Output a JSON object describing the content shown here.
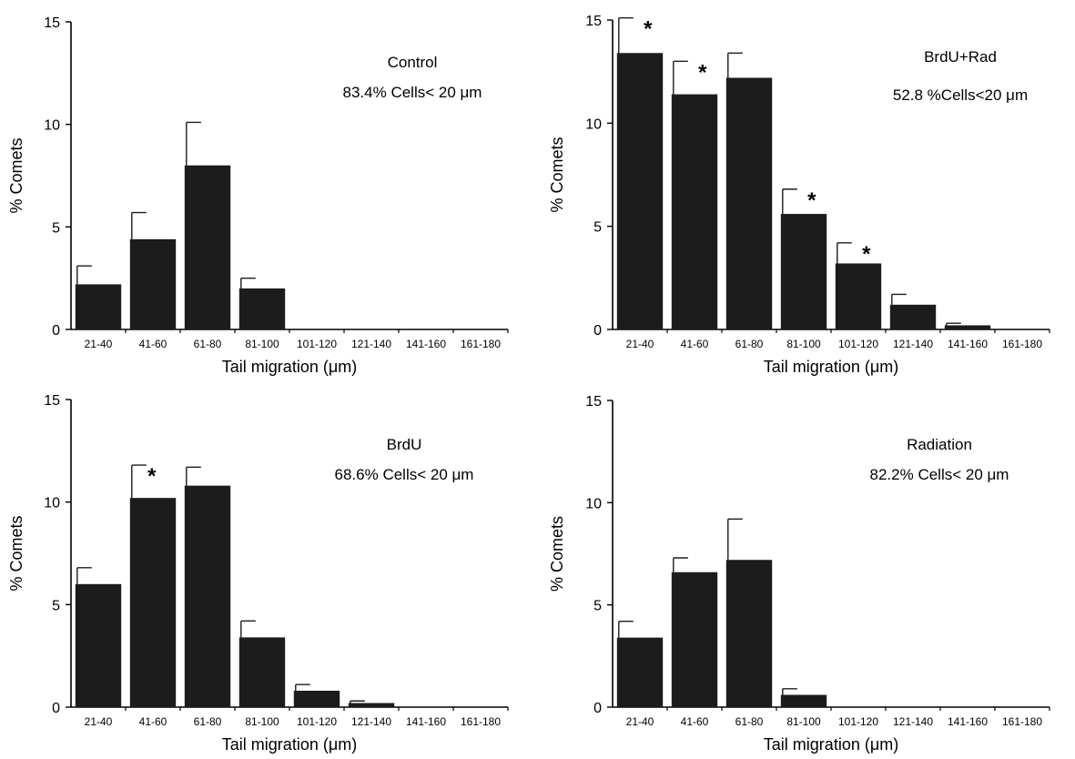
{
  "chart_data": [
    {
      "type": "bar",
      "categories": [
        "21-40",
        "41-60",
        "61-80",
        "81-100",
        "101-120",
        "121-140",
        "141-160",
        "161-180"
      ],
      "values": [
        2.2,
        4.4,
        8.0,
        2.0,
        0,
        0,
        0,
        0
      ],
      "errors": [
        0.9,
        1.3,
        2.1,
        0.5,
        0,
        0,
        0,
        0
      ],
      "significant": [
        false,
        false,
        false,
        false,
        false,
        false,
        false,
        false
      ],
      "xlabel": "Tail migration (μm)",
      "ylabel": "% Comets",
      "ylim": [
        0,
        15
      ],
      "yticks": [
        "0",
        "5",
        "10",
        "15"
      ],
      "annotations": [
        "Control",
        "83.4% Cells< 20 μm"
      ],
      "significance_marker": "*",
      "grid": false
    },
    {
      "type": "bar",
      "categories": [
        "21-40",
        "41-60",
        "61-80",
        "81-100",
        "101-120",
        "121-140",
        "141-160",
        "161-180"
      ],
      "values": [
        13.4,
        11.4,
        12.2,
        5.6,
        3.2,
        1.2,
        0.2,
        0
      ],
      "errors": [
        1.7,
        1.6,
        1.2,
        1.2,
        1.0,
        0.5,
        0.1,
        0
      ],
      "significant": [
        true,
        true,
        false,
        true,
        true,
        false,
        false,
        false
      ],
      "xlabel": "Tail migration (μm)",
      "ylabel": "% Comets",
      "ylim": [
        0,
        15
      ],
      "yticks": [
        "0",
        "5",
        "10",
        "15"
      ],
      "annotations": [
        "BrdU+Rad",
        "52.8 %Cells<20 μm"
      ],
      "significance_marker": "*",
      "grid": false
    },
    {
      "type": "bar",
      "categories": [
        "21-40",
        "41-60",
        "61-80",
        "81-100",
        "101-120",
        "121-140",
        "141-160",
        "161-180"
      ],
      "values": [
        6.0,
        10.2,
        10.8,
        3.4,
        0.8,
        0.2,
        0,
        0
      ],
      "errors": [
        0.8,
        1.6,
        0.9,
        0.8,
        0.3,
        0.1,
        0,
        0
      ],
      "significant": [
        false,
        true,
        false,
        false,
        false,
        false,
        false,
        false
      ],
      "xlabel": "Tail migration (μm)",
      "ylabel": "% Comets",
      "ylim": [
        0,
        15
      ],
      "yticks": [
        "0",
        "5",
        "10",
        "15"
      ],
      "annotations": [
        "BrdU",
        "68.6% Cells< 20 μm"
      ],
      "significance_marker": "*",
      "grid": false
    },
    {
      "type": "bar",
      "categories": [
        "21-40",
        "41-60",
        "61-80",
        "81-100",
        "101-120",
        "121-140",
        "141-160",
        "161-180"
      ],
      "values": [
        3.4,
        6.6,
        7.2,
        0.6,
        0,
        0,
        0,
        0
      ],
      "errors": [
        0.8,
        0.7,
        2.0,
        0.3,
        0,
        0,
        0,
        0
      ],
      "significant": [
        false,
        false,
        false,
        false,
        false,
        false,
        false,
        false
      ],
      "xlabel": "Tail migration (μm)",
      "ylabel": "% Comets",
      "ylim": [
        0,
        15
      ],
      "yticks": [
        "0",
        "5",
        "10",
        "15"
      ],
      "annotations": [
        "Radiation",
        "82.2% Cells< 20 μm"
      ],
      "significance_marker": "*",
      "grid": false
    }
  ],
  "colors": {
    "bar": "#1c1c1c",
    "axis": "#000000"
  }
}
